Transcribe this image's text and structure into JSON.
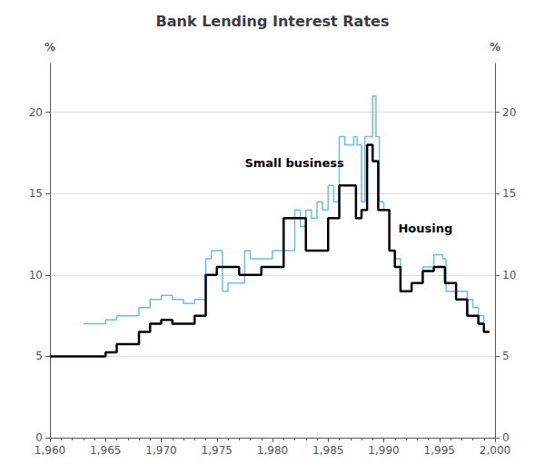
{
  "chart_data": {
    "type": "line",
    "title": "Bank Lending Interest Rates",
    "ylabel": "%",
    "y2label": "%",
    "xlim": [
      1960,
      2000
    ],
    "xticks": [
      1960,
      1965,
      1970,
      1975,
      1980,
      1985,
      1990,
      1995,
      2000
    ],
    "ylim": [
      0,
      23
    ],
    "yticks": [
      0,
      5,
      10,
      15,
      20
    ],
    "y2lim": [
      0,
      23
    ],
    "y2ticks": [
      0,
      5,
      10,
      15,
      20
    ],
    "grid": true,
    "line_style": "step",
    "series": [
      {
        "color": "#6bbfdf",
        "x": [
          1963,
          1964,
          1965,
          1966,
          1967,
          1968,
          1969,
          1970,
          1971,
          1972,
          1973,
          1974,
          1974.5,
          1975,
          1975.5,
          1976,
          1977,
          1977.5,
          1978,
          1979,
          1980,
          1981,
          1981.5,
          1982,
          1982.5,
          1983,
          1983.5,
          1984,
          1984.5,
          1985,
          1985.5,
          1986,
          1986.5,
          1987,
          1987.3,
          1987.6,
          1988,
          1988.3,
          1989,
          1989.3,
          1989.6,
          1990,
          1990.5,
          1991,
          1991.5,
          1992,
          1992.5,
          1993,
          1993.5,
          1994,
          1994.5,
          1995,
          1995.3,
          1995.6,
          1996,
          1996.5,
          1997,
          1997.5,
          1998,
          1998.5,
          1999
        ],
        "values": [
          7.0,
          7.0,
          7.25,
          7.5,
          7.5,
          8.0,
          8.5,
          8.75,
          8.5,
          8.25,
          8.5,
          11.0,
          11.5,
          11.5,
          9.0,
          9.5,
          9.5,
          11.5,
          11.0,
          11.0,
          11.5,
          11.5,
          11.5,
          14.0,
          13.0,
          14.0,
          13.5,
          14.5,
          14.0,
          15.5,
          14.5,
          18.5,
          18.0,
          18.0,
          18.5,
          18.0,
          14.5,
          18.5,
          21.0,
          18.5,
          14.5,
          14.0,
          11.5,
          11.0,
          9.0,
          9.0,
          9.5,
          9.5,
          10.5,
          10.5,
          11.25,
          11.25,
          11.0,
          9.0,
          9.0,
          9.0,
          9.0,
          8.5,
          8.0,
          7.5,
          7.0
        ]
      },
      {
        "color": "#000000",
        "x": [
          1960,
          1961,
          1962,
          1963,
          1964,
          1965,
          1966,
          1967,
          1968,
          1969,
          1970,
          1971,
          1972,
          1973,
          1974,
          1975,
          1976,
          1977,
          1978,
          1979,
          1980,
          1981,
          1982,
          1983,
          1984,
          1985,
          1986,
          1987,
          1987.5,
          1988,
          1988.5,
          1989,
          1989.5,
          1990,
          1990.5,
          1991,
          1991.5,
          1992,
          1992.5,
          1993,
          1993.5,
          1994,
          1994.5,
          1995,
          1995.5,
          1996,
          1996.5,
          1997,
          1997.5,
          1998,
          1998.5,
          1999,
          1999.5
        ],
        "values": [
          5.0,
          5.0,
          5.0,
          5.0,
          5.0,
          5.25,
          5.75,
          5.75,
          6.5,
          7.0,
          7.25,
          7.0,
          7.0,
          7.5,
          10.0,
          10.5,
          10.5,
          10.0,
          10.0,
          10.5,
          10.5,
          13.5,
          13.5,
          11.5,
          11.5,
          13.5,
          15.5,
          15.5,
          13.5,
          14.0,
          18.0,
          17.0,
          14.0,
          14.0,
          11.5,
          10.5,
          9.0,
          9.0,
          9.5,
          9.5,
          10.25,
          10.25,
          10.5,
          10.5,
          9.5,
          9.5,
          8.5,
          8.5,
          7.5,
          7.5,
          7.0,
          6.5,
          6.5
        ]
      }
    ],
    "annotations": [
      {
        "text": "Small business",
        "x": 1977.5,
        "y": 16.5
      },
      {
        "text": "Housing",
        "x": 1991.3,
        "y": 12.5
      }
    ]
  }
}
